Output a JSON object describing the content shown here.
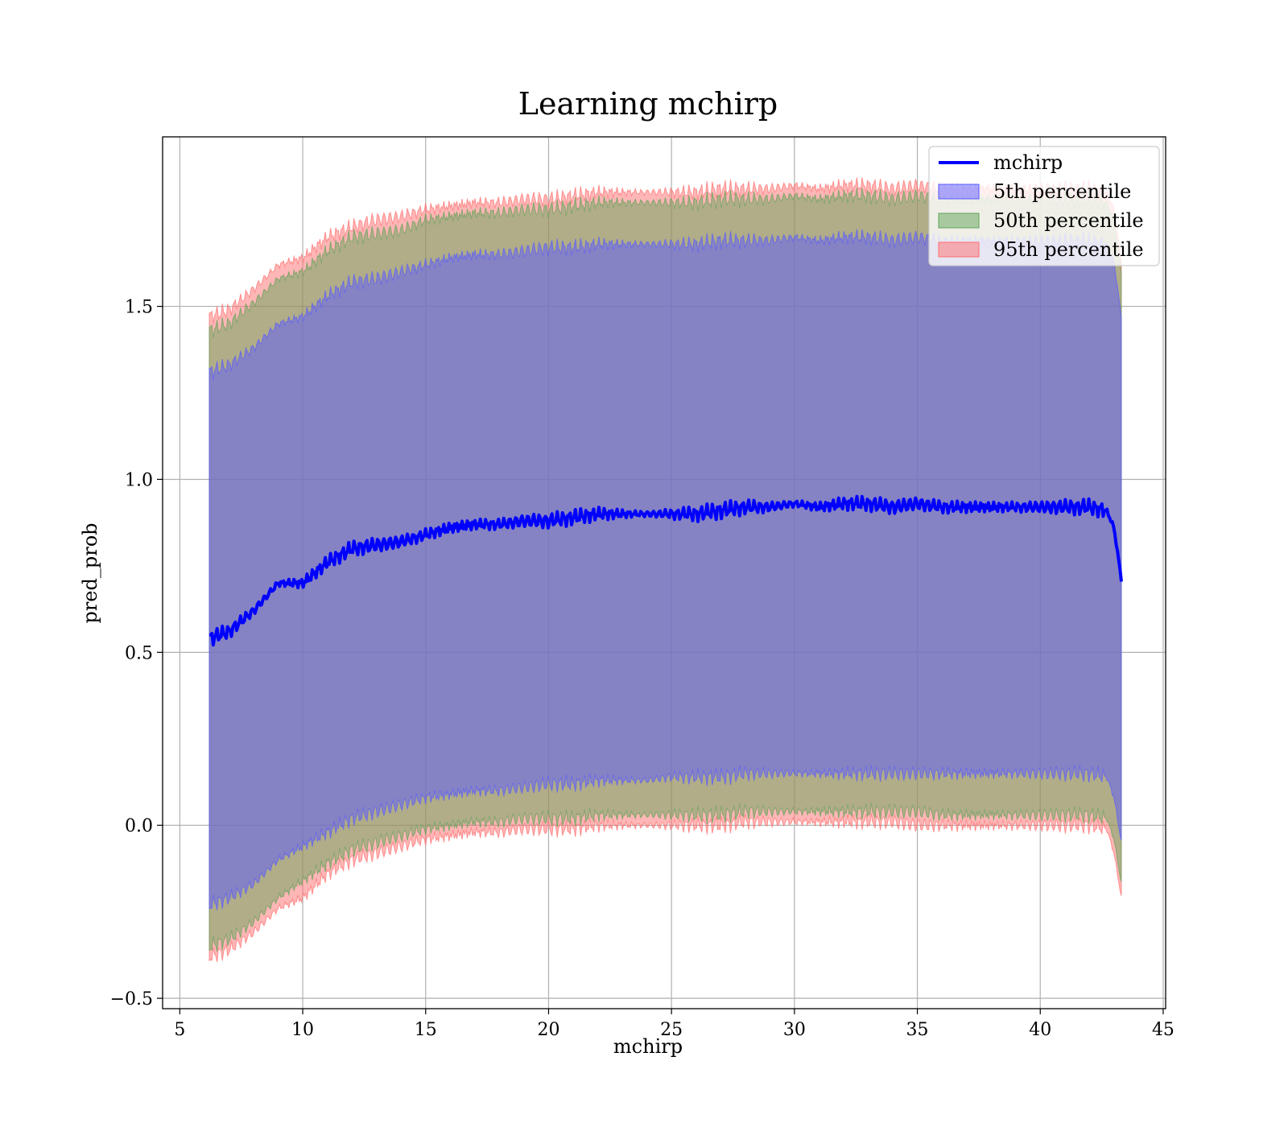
{
  "chart_data": {
    "type": "line",
    "title": "Learning mchirp",
    "xlabel": "mchirp",
    "ylabel": "pred_prob",
    "xlim": [
      4.3,
      45.1
    ],
    "ylim": [
      -0.53,
      1.99
    ],
    "xticks": [
      5,
      10,
      15,
      20,
      25,
      30,
      35,
      40,
      45
    ],
    "yticks": [
      -0.5,
      0.0,
      0.5,
      1.0,
      1.5
    ],
    "ytick_labels": [
      "−0.5",
      "0.0",
      "0.5",
      "1.0",
      "1.5"
    ],
    "grid": true,
    "legend_position": "top-right",
    "colors": {
      "line": "#0000ff",
      "band_5th": "#5a5aff",
      "band_50th": "#62a35a",
      "band_95th": "#ff6e6e",
      "grid": "#b0b0b0"
    },
    "x": [
      6.2,
      7,
      8,
      9,
      10,
      11,
      12,
      13,
      14,
      15,
      16,
      17,
      18,
      19,
      20,
      21,
      22,
      23,
      24,
      25,
      26,
      27,
      28,
      29,
      30,
      31,
      32,
      33,
      34,
      35,
      36,
      37,
      38,
      39,
      40,
      41,
      42,
      42.7,
      43.0,
      43.3
    ],
    "series": [
      {
        "name": "mchirp",
        "kind": "line",
        "values": [
          0.54,
          0.56,
          0.62,
          0.7,
          0.7,
          0.76,
          0.8,
          0.81,
          0.82,
          0.84,
          0.86,
          0.87,
          0.87,
          0.88,
          0.88,
          0.89,
          0.9,
          0.9,
          0.9,
          0.9,
          0.9,
          0.91,
          0.92,
          0.92,
          0.93,
          0.92,
          0.93,
          0.93,
          0.92,
          0.93,
          0.92,
          0.92,
          0.92,
          0.92,
          0.92,
          0.92,
          0.92,
          0.91,
          0.86,
          0.71
        ]
      },
      {
        "name": "5th percentile",
        "kind": "band",
        "lower": [
          -0.23,
          -0.21,
          -0.17,
          -0.1,
          -0.06,
          -0.02,
          0.02,
          0.04,
          0.06,
          0.08,
          0.09,
          0.1,
          0.1,
          0.11,
          0.12,
          0.12,
          0.13,
          0.13,
          0.13,
          0.14,
          0.14,
          0.14,
          0.15,
          0.15,
          0.15,
          0.15,
          0.15,
          0.15,
          0.15,
          0.15,
          0.15,
          0.15,
          0.15,
          0.15,
          0.15,
          0.15,
          0.15,
          0.14,
          0.08,
          -0.05
        ],
        "upper": [
          1.31,
          1.33,
          1.38,
          1.45,
          1.47,
          1.53,
          1.57,
          1.58,
          1.6,
          1.62,
          1.64,
          1.65,
          1.65,
          1.66,
          1.67,
          1.67,
          1.68,
          1.68,
          1.68,
          1.68,
          1.68,
          1.69,
          1.69,
          1.69,
          1.7,
          1.69,
          1.7,
          1.7,
          1.69,
          1.7,
          1.69,
          1.69,
          1.69,
          1.69,
          1.69,
          1.69,
          1.69,
          1.68,
          1.63,
          1.47
        ]
      },
      {
        "name": "50th percentile",
        "kind": "band",
        "lower": [
          -0.35,
          -0.33,
          -0.28,
          -0.21,
          -0.16,
          -0.11,
          -0.07,
          -0.05,
          -0.03,
          -0.01,
          0.0,
          0.01,
          0.01,
          0.02,
          0.02,
          0.02,
          0.03,
          0.03,
          0.03,
          0.03,
          0.03,
          0.03,
          0.04,
          0.04,
          0.04,
          0.04,
          0.04,
          0.04,
          0.04,
          0.04,
          0.03,
          0.03,
          0.03,
          0.03,
          0.03,
          0.03,
          0.03,
          0.02,
          -0.04,
          -0.17
        ],
        "upper": [
          1.43,
          1.45,
          1.51,
          1.58,
          1.6,
          1.66,
          1.7,
          1.71,
          1.72,
          1.75,
          1.76,
          1.77,
          1.77,
          1.78,
          1.78,
          1.79,
          1.8,
          1.8,
          1.8,
          1.8,
          1.8,
          1.81,
          1.81,
          1.81,
          1.82,
          1.81,
          1.82,
          1.82,
          1.81,
          1.82,
          1.81,
          1.81,
          1.81,
          1.81,
          1.81,
          1.81,
          1.81,
          1.8,
          1.75,
          1.6
        ]
      },
      {
        "name": "95th percentile",
        "kind": "band",
        "lower": [
          -0.38,
          -0.36,
          -0.31,
          -0.24,
          -0.21,
          -0.14,
          -0.1,
          -0.08,
          -0.06,
          -0.04,
          -0.03,
          -0.02,
          -0.02,
          -0.01,
          -0.01,
          -0.01,
          0.0,
          0.0,
          0.0,
          0.0,
          0.0,
          0.0,
          0.01,
          0.01,
          0.01,
          0.01,
          0.01,
          0.01,
          0.01,
          0.0,
          0.0,
          0.0,
          0.0,
          0.0,
          0.0,
          0.0,
          0.0,
          -0.01,
          -0.08,
          -0.21
        ],
        "upper": [
          1.47,
          1.49,
          1.55,
          1.62,
          1.64,
          1.7,
          1.73,
          1.75,
          1.76,
          1.78,
          1.79,
          1.8,
          1.8,
          1.81,
          1.81,
          1.82,
          1.83,
          1.83,
          1.83,
          1.83,
          1.83,
          1.84,
          1.84,
          1.84,
          1.85,
          1.84,
          1.85,
          1.85,
          1.84,
          1.85,
          1.84,
          1.84,
          1.84,
          1.84,
          1.84,
          1.84,
          1.84,
          1.83,
          1.78,
          1.63
        ]
      }
    ]
  }
}
